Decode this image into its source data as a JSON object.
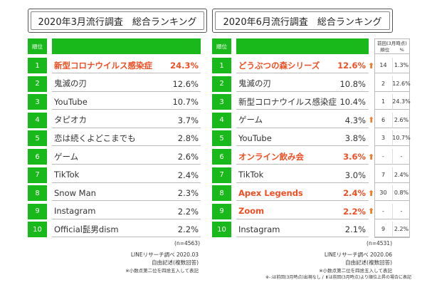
{
  "chart_data": [
    {
      "type": "table",
      "title": "2020年3月流行調査　総合ランキング",
      "rank_header": "順位",
      "rows": [
        {
          "rank": "1",
          "name": "新型コロナウイルス感染症",
          "pct": "24.3%",
          "highlight": true
        },
        {
          "rank": "2",
          "name": "鬼滅の刃",
          "pct": "12.6%",
          "highlight": false
        },
        {
          "rank": "3",
          "name": "YouTube",
          "pct": "10.7%",
          "highlight": false
        },
        {
          "rank": "4",
          "name": "タピオカ",
          "pct": "3.7%",
          "highlight": false
        },
        {
          "rank": "5",
          "name": "恋は続くよどこまでも",
          "pct": "2.8%",
          "highlight": false
        },
        {
          "rank": "6",
          "name": "ゲーム",
          "pct": "2.6%",
          "highlight": false
        },
        {
          "rank": "7",
          "name": "TikTok",
          "pct": "2.4%",
          "highlight": false
        },
        {
          "rank": "8",
          "name": "Snow Man",
          "pct": "2.3%",
          "highlight": false
        },
        {
          "rank": "9",
          "name": "Instagram",
          "pct": "2.2%",
          "highlight": false
        },
        {
          "rank": "10",
          "name": "Official髭男dism",
          "pct": "2.2%",
          "highlight": false
        }
      ],
      "n_note": "(n=4563)",
      "source_notes": [
        "LINEリサーチ調べ 2020.03",
        "自由記述(複数回答)",
        "※小数点第二位を四捨五入して表記"
      ]
    },
    {
      "type": "table",
      "title": "2020年6月流行調査　総合ランキング",
      "rank_header": "順位",
      "prev_header_line1": "前回(3月時点)",
      "prev_header_rank": "順位",
      "prev_header_pct": "%",
      "rows": [
        {
          "rank": "1",
          "name": "どうぶつの森シリーズ",
          "pct": "12.6%",
          "highlight": true,
          "arrow": "⬆",
          "prev_rank": "14",
          "prev_pct": "1.3%"
        },
        {
          "rank": "2",
          "name": "鬼滅の刃",
          "pct": "10.8%",
          "highlight": false,
          "arrow": "",
          "prev_rank": "2",
          "prev_pct": "12.6%"
        },
        {
          "rank": "3",
          "name": "新型コロナウイルス感染症",
          "pct": "10.4%",
          "highlight": false,
          "arrow": "",
          "prev_rank": "1",
          "prev_pct": "24.3%"
        },
        {
          "rank": "4",
          "name": "ゲーム",
          "pct": "4.3%",
          "highlight": false,
          "arrow": "⬆",
          "prev_rank": "6",
          "prev_pct": "2.6%"
        },
        {
          "rank": "5",
          "name": "YouTube",
          "pct": "3.8%",
          "highlight": false,
          "arrow": "",
          "prev_rank": "3",
          "prev_pct": "10.7%"
        },
        {
          "rank": "6",
          "name": "オンライン飲み会",
          "pct": "3.6%",
          "highlight": true,
          "arrow": "⬆",
          "prev_rank": "-",
          "prev_pct": "-"
        },
        {
          "rank": "7",
          "name": "TikTok",
          "pct": "3.0%",
          "highlight": false,
          "arrow": "",
          "prev_rank": "7",
          "prev_pct": "2.4%"
        },
        {
          "rank": "8",
          "name": "Apex Legends",
          "pct": "2.4%",
          "highlight": true,
          "arrow": "⬆",
          "prev_rank": "30",
          "prev_pct": "0.8%"
        },
        {
          "rank": "9",
          "name": "Zoom",
          "pct": "2.2%",
          "highlight": true,
          "arrow": "⬆",
          "prev_rank": "-",
          "prev_pct": "-"
        },
        {
          "rank": "10",
          "name": "Instagram",
          "pct": "2.1%",
          "highlight": false,
          "arrow": "",
          "prev_rank": "9",
          "prev_pct": "2.2%"
        }
      ],
      "n_note": "(n=4531)",
      "source_notes": [
        "LINEリサーチ調べ 2020.06",
        "自由記述(複数回答)",
        "※小数点第二位を四捨五入して表記",
        "※-:は前回(3月時点)出現なし / ⬆は前回(3月時点)より順位上昇の場合に表記"
      ]
    }
  ],
  "colors": {
    "green": "#19b91b",
    "highlight": "#f04e23",
    "arrow": "#f07b23"
  }
}
